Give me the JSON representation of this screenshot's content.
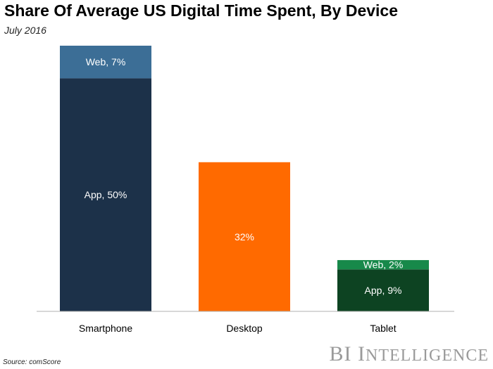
{
  "title": "Share Of Average US Digital Time Spent, By Device",
  "subtitle": "July 2016",
  "source": "Source: comScore",
  "brand": {
    "prefix": "BI",
    "name": "Intelligence"
  },
  "colors": {
    "smartphone_app": "#1c3149",
    "smartphone_web": "#3c6e96",
    "desktop": "#ff6a00",
    "tablet_app": "#0d4322",
    "tablet_web": "#17894a",
    "axis": "#b0b0b0",
    "label_text": "#ffffff"
  },
  "chart_data": {
    "type": "bar",
    "stacked": true,
    "title": "Share Of Average US Digital Time Spent, By Device",
    "subtitle": "July 2016",
    "categories": [
      "Smartphone",
      "Desktop",
      "Tablet"
    ],
    "ylim": [
      0,
      57
    ],
    "series": [
      {
        "name": "App",
        "values": [
          50,
          null,
          9
        ],
        "labels": [
          "App, 50%",
          null,
          "App, 9%"
        ],
        "color_keys": [
          "smartphone_app",
          null,
          "tablet_app"
        ]
      },
      {
        "name": "Desktop",
        "values": [
          null,
          32,
          null
        ],
        "labels": [
          null,
          "32%",
          null
        ],
        "color_keys": [
          null,
          "desktop",
          null
        ]
      },
      {
        "name": "Web",
        "values": [
          7,
          null,
          2
        ],
        "labels": [
          "Web, 7%",
          null,
          "Web, 2%"
        ],
        "color_keys": [
          "smartphone_web",
          null,
          "tablet_web"
        ]
      }
    ]
  }
}
